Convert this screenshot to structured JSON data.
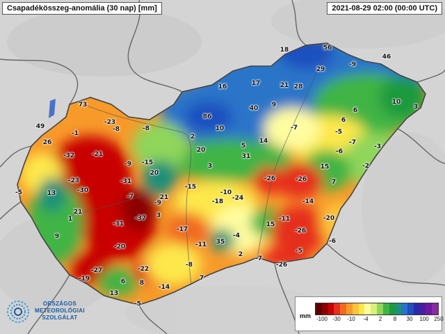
{
  "header": {
    "title": "Csapadékösszeg-anomália (30 nap) [mm]",
    "timestamp": "2021-08-29 02:00 (00:00 UTC)"
  },
  "logo": {
    "line1": "ORSZÁGOS",
    "line2": "METEOROLÓGIAI",
    "line3": "SZOLGÁLAT"
  },
  "legend": {
    "unit": "mm",
    "ticks": [
      "-100",
      "-30",
      "-10",
      "-4",
      "2",
      "8",
      "30",
      "100",
      "250"
    ],
    "colors": [
      "#5a0000",
      "#8b0000",
      "#c80000",
      "#e62e1e",
      "#f06a20",
      "#f79a2a",
      "#fcc43a",
      "#fde84c",
      "#fffda0",
      "#d6f07a",
      "#8fd65a",
      "#3fb445",
      "#1e9a3e",
      "#1f8f7a",
      "#2a74c8",
      "#1f4fc0",
      "#2b2aa8",
      "#4b1e9e",
      "#6a1aa0",
      "#8b2aa8"
    ]
  },
  "stations": [
    {
      "v": "18"
    },
    {
      "v": "56"
    },
    {
      "v": "46"
    },
    {
      "v": "29"
    },
    {
      "v": "-9"
    },
    {
      "v": "16"
    },
    {
      "v": "17"
    },
    {
      "v": "21"
    },
    {
      "v": "28"
    },
    {
      "v": "73"
    },
    {
      "v": "6"
    },
    {
      "v": "10"
    },
    {
      "v": "3"
    },
    {
      "v": "40"
    },
    {
      "v": "9"
    },
    {
      "v": "86"
    },
    {
      "v": "6"
    },
    {
      "v": "-23"
    },
    {
      "v": "-8"
    },
    {
      "v": "-8"
    },
    {
      "v": "-7"
    },
    {
      "v": "-5"
    },
    {
      "v": "49"
    },
    {
      "v": "-1"
    },
    {
      "v": "10"
    },
    {
      "v": "2"
    },
    {
      "v": "-7"
    },
    {
      "v": "14"
    },
    {
      "v": "26"
    },
    {
      "v": "5"
    },
    {
      "v": "20"
    },
    {
      "v": "-6"
    },
    {
      "v": "-3"
    },
    {
      "v": "-32"
    },
    {
      "v": "-21"
    },
    {
      "v": "31"
    },
    {
      "v": "-15"
    },
    {
      "v": "-9"
    },
    {
      "v": "3"
    },
    {
      "v": "15"
    },
    {
      "v": "-2"
    },
    {
      "v": "20"
    },
    {
      "v": "-26"
    },
    {
      "v": "-26"
    },
    {
      "v": "-23"
    },
    {
      "v": "-31"
    },
    {
      "v": "-15"
    },
    {
      "v": "7"
    },
    {
      "v": "-5"
    },
    {
      "v": "13"
    },
    {
      "v": "-30"
    },
    {
      "v": "-10"
    },
    {
      "v": "-24"
    },
    {
      "v": "-7"
    },
    {
      "v": "21"
    },
    {
      "v": "-18"
    },
    {
      "v": "-9"
    },
    {
      "v": "-14"
    },
    {
      "v": "21"
    },
    {
      "v": "3"
    },
    {
      "v": "-37"
    },
    {
      "v": "1"
    },
    {
      "v": "-31"
    },
    {
      "v": "-17"
    },
    {
      "v": "15"
    },
    {
      "v": "-11"
    },
    {
      "v": "-20"
    },
    {
      "v": "9"
    },
    {
      "v": "-26"
    },
    {
      "v": "-4"
    },
    {
      "v": "35"
    },
    {
      "v": "-11"
    },
    {
      "v": "-6"
    },
    {
      "v": "-20"
    },
    {
      "v": "2"
    },
    {
      "v": "-5"
    },
    {
      "v": "-7"
    },
    {
      "v": "-8"
    },
    {
      "v": "-26"
    },
    {
      "v": "-27"
    },
    {
      "v": "-22"
    },
    {
      "v": "-19"
    },
    {
      "v": "6"
    },
    {
      "v": "8"
    },
    {
      "v": "-14"
    },
    {
      "v": "7"
    },
    {
      "v": "13"
    },
    {
      "v": "-5"
    }
  ]
}
